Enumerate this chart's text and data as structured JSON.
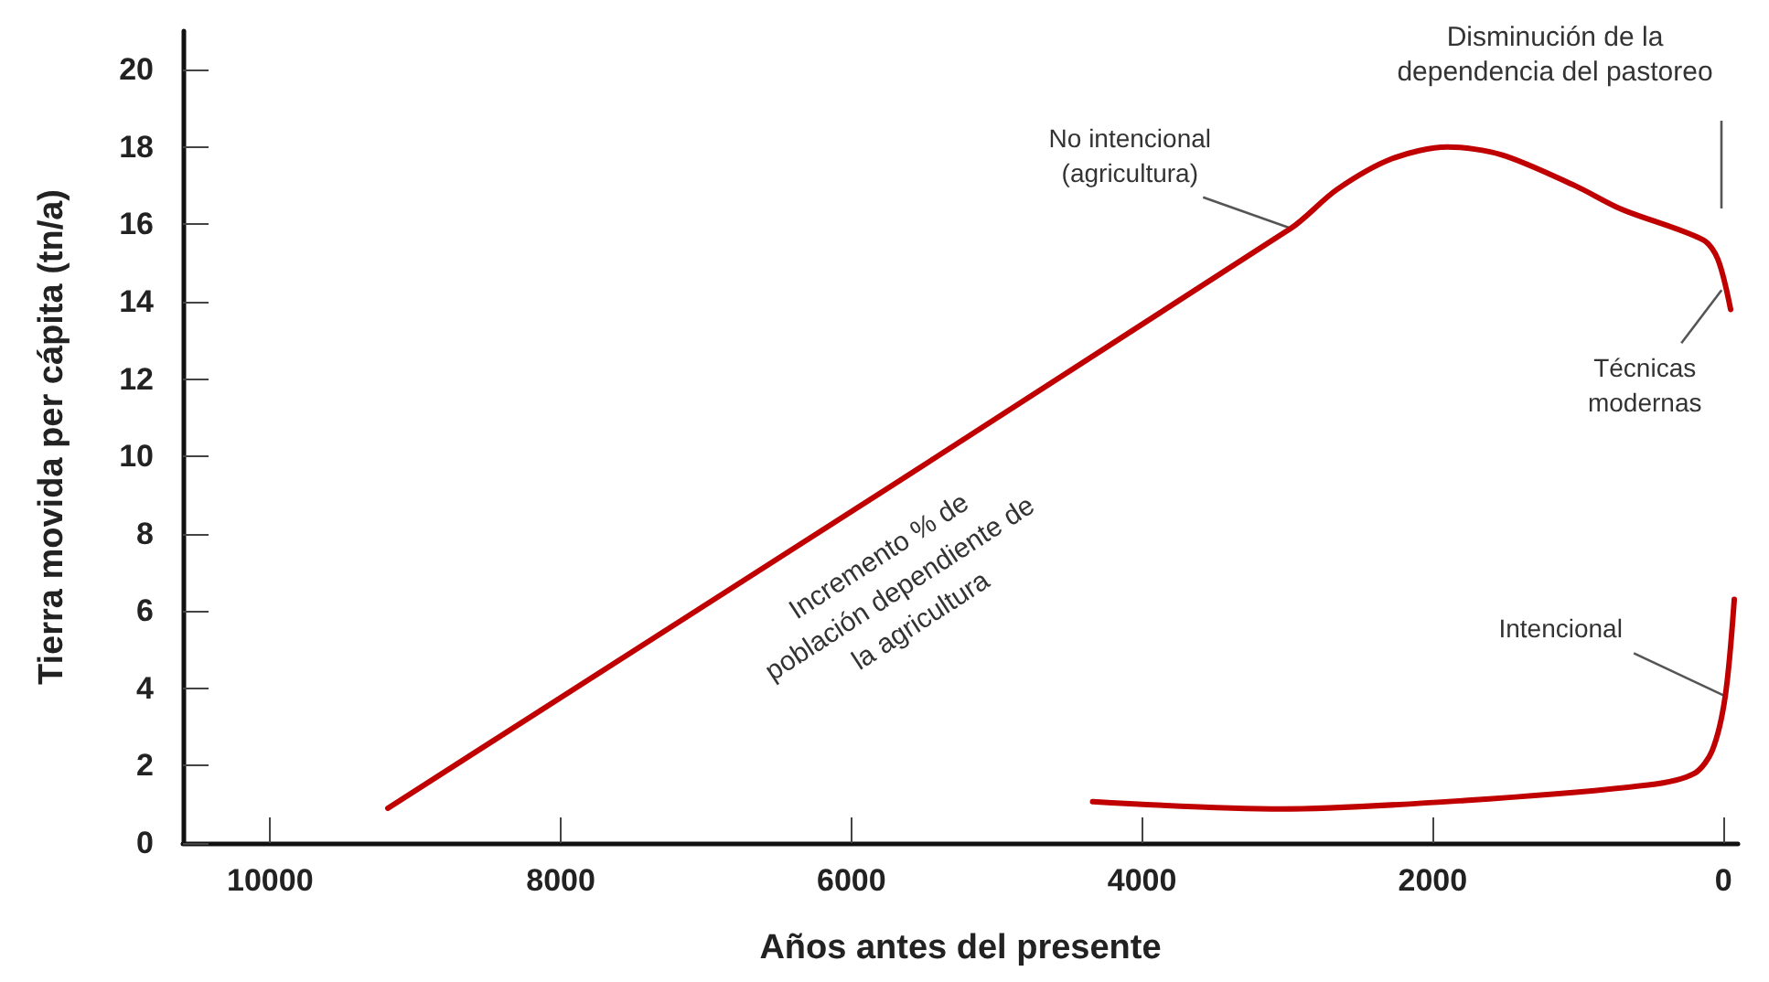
{
  "chart_data": {
    "type": "line",
    "xlabel": "Años antes del presente",
    "ylabel": "Tierra movida per cápita (tn/a)",
    "xlim": [
      10600,
      -100
    ],
    "xticks": [
      10000,
      8000,
      6000,
      4000,
      2000,
      0
    ],
    "ylim": [
      0,
      21
    ],
    "yticks": [
      0,
      2,
      4,
      6,
      8,
      10,
      12,
      14,
      16,
      18,
      20
    ],
    "grid": false,
    "marker": "none",
    "line_style": "solid",
    "series": [
      {
        "color": "#c00000",
        "x": [
          9190,
          2976,
          2660,
          2280,
          1900,
          1525,
          1020,
          706,
          139,
          38,
          -50
        ],
        "values": [
          0.9,
          15.9,
          16.9,
          17.7,
          18.0,
          17.8,
          17.0,
          16.4,
          15.6,
          15.1,
          13.8
        ]
      },
      {
        "color": "#c00000",
        "x": [
          4340,
          3040,
          1780,
          517,
          200,
          76,
          -13,
          -75
        ],
        "values": [
          1.07,
          0.88,
          1.1,
          1.5,
          1.8,
          2.4,
          3.8,
          6.3
        ]
      }
    ],
    "annotations": [
      {
        "text": "No intencional\n(agricultura)",
        "x": 2976,
        "y": 15.9
      },
      "Disminución de la\ndependencia del pastoreo",
      {
        "text": "Técnicas\nmodernas",
        "x": 12,
        "y": 14.3
      },
      {
        "text": "Intencional",
        "x": -13,
        "y": 3.8
      },
      "Incremento % de\npoblación dependiente de\nla agricultura"
    ]
  }
}
